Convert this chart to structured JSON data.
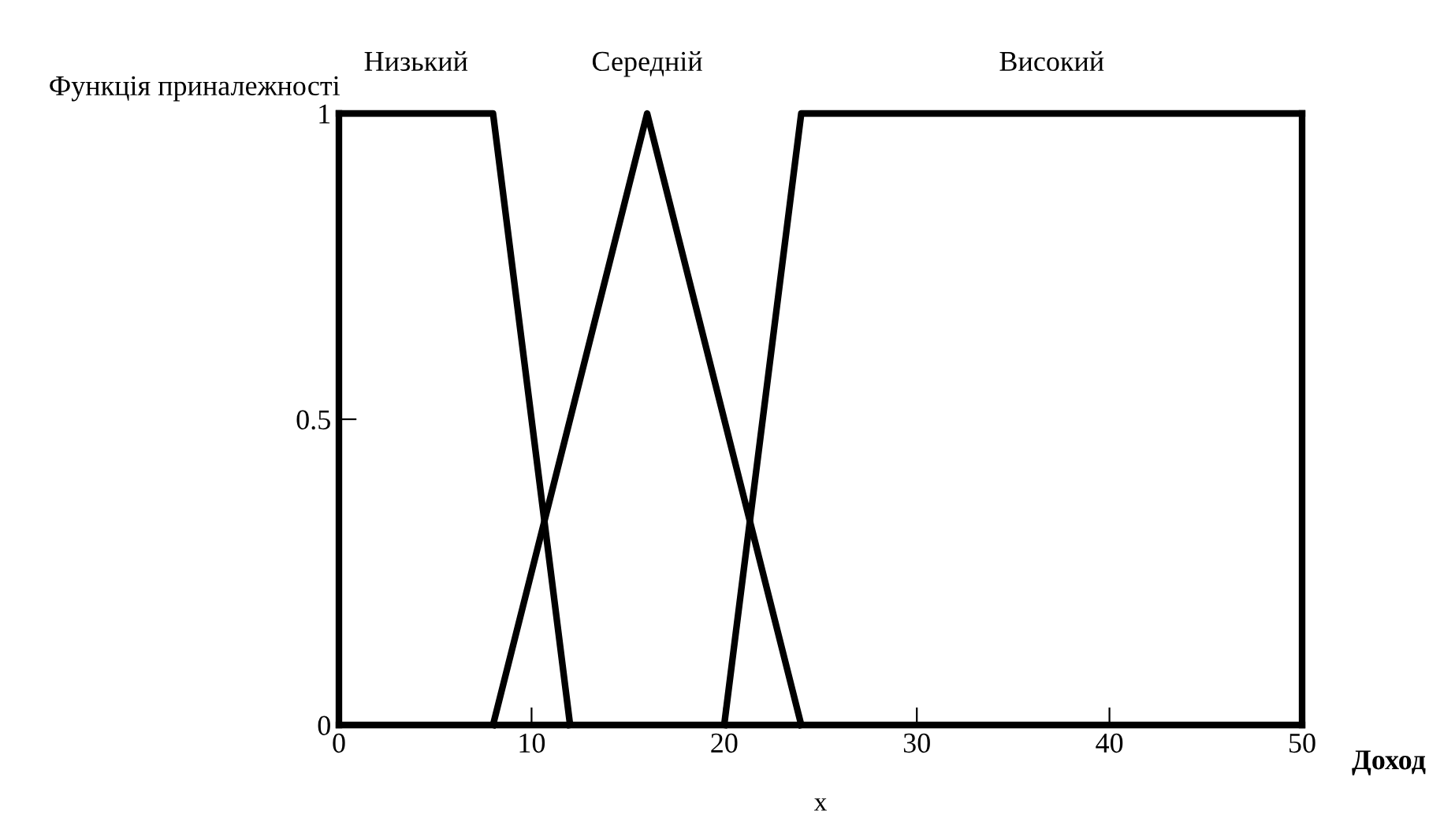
{
  "chart_data": {
    "type": "line",
    "ylabel": "Функція приналежності",
    "xlabel": "Доход",
    "annotations": [
      "x"
    ],
    "series": [
      {
        "name": "Низький",
        "color": "#000000",
        "x": [
          0,
          8,
          12
        ],
        "values": [
          1,
          1,
          0
        ]
      },
      {
        "name": "Середній",
        "color": "#000000",
        "x": [
          8,
          16,
          24
        ],
        "values": [
          0,
          1,
          0
        ]
      },
      {
        "name": "Високий",
        "color": "#000000",
        "x": [
          20,
          24,
          50
        ],
        "values": [
          0,
          1,
          1
        ]
      }
    ],
    "xlim": [
      0,
      50
    ],
    "xticks": [
      0,
      10,
      20,
      30,
      40,
      50
    ],
    "ylim": [
      0,
      1
    ],
    "yticks": [
      0,
      0.5,
      1
    ],
    "grid": false,
    "legend": false,
    "marker": "none",
    "line_style": "solid"
  }
}
